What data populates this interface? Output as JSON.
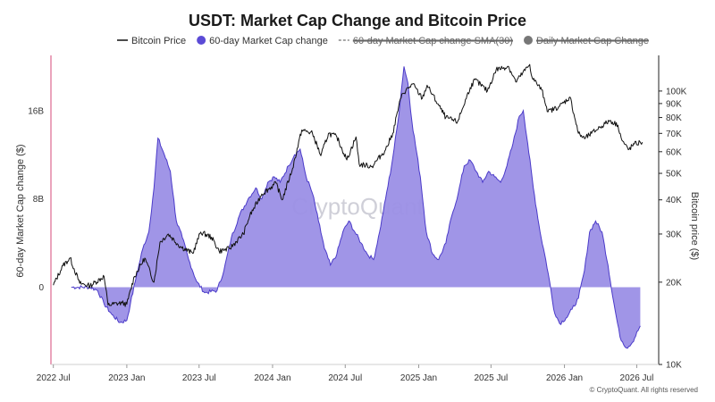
{
  "chart_data": {
    "type": "area",
    "title": "USDT: Market Cap Change and Bitcoin Price",
    "ylabel_left": "60-day Market Cap change ($)",
    "ylabel_right": "Bitcoin price ($)",
    "left_ticks": [
      {
        "label": "16B",
        "value": 16000000000
      },
      {
        "label": "8B",
        "value": 8000000000
      },
      {
        "label": "0",
        "value": 0
      }
    ],
    "right_ticks": [
      {
        "label": "100K",
        "value": 100000
      },
      {
        "label": "90K",
        "value": 90000
      },
      {
        "label": "80K",
        "value": 80000
      },
      {
        "label": "70K",
        "value": 70000
      },
      {
        "label": "60K",
        "value": 60000
      },
      {
        "label": "50K",
        "value": 50000
      },
      {
        "label": "40K",
        "value": 40000
      },
      {
        "label": "30K",
        "value": 30000
      },
      {
        "label": "20K",
        "value": 20000
      },
      {
        "label": "10K",
        "value": 10000
      }
    ],
    "ylim_left": [
      -7000000000,
      21000000000
    ],
    "ylim_right_log": [
      10000,
      135000
    ],
    "x_ticks": [
      {
        "label": "2022 Jul",
        "date": "2022-07-01"
      },
      {
        "label": "2023 Jan",
        "date": "2023-01-01"
      },
      {
        "label": "2023 Jul",
        "date": "2023-07-01"
      },
      {
        "label": "2024 Jan",
        "date": "2024-01-01"
      },
      {
        "label": "2024 Jul",
        "date": "2024-07-01"
      },
      {
        "label": "2025 Jan",
        "date": "2025-01-01"
      },
      {
        "label": "2025 Jul",
        "date": "2025-07-01"
      },
      {
        "label": "2026 Jan",
        "date": "2026-01-01"
      },
      {
        "label": "2026 Jul",
        "date": "2026-07-01"
      }
    ],
    "xlim": [
      "2022-06-25",
      "2026-08-25"
    ],
    "legend": [
      {
        "name": "Bitcoin Price",
        "style": "line",
        "color": "#111111",
        "enabled": true
      },
      {
        "name": "60-day Market Cap change",
        "style": "dot",
        "color": "#5b4bd6",
        "enabled": true
      },
      {
        "name": "60-day Market Cap change SMA(30)",
        "style": "dashed",
        "color": "#888888",
        "enabled": false
      },
      {
        "name": "Daily Market Cap Change",
        "style": "dot",
        "color": "#777777",
        "enabled": false
      }
    ],
    "legend_position": "top",
    "grid": false,
    "colors": {
      "area_fill": "#9b8fe6",
      "area_line": "#4b3bc9",
      "price_line": "#111111",
      "left_axis_line": "#d64a7a"
    },
    "series": [
      {
        "name": "60-day Market Cap change",
        "unit": "USD billions",
        "points": [
          [
            "2022-08-15",
            0.0
          ],
          [
            "2022-10-01",
            0.0
          ],
          [
            "2022-10-20",
            -0.3
          ],
          [
            "2022-11-05",
            -1.5
          ],
          [
            "2022-11-25",
            -2.5
          ],
          [
            "2022-12-15",
            -3.2
          ],
          [
            "2023-01-01",
            -3.0
          ],
          [
            "2023-01-10",
            -1.5
          ],
          [
            "2023-01-25",
            1.0
          ],
          [
            "2023-02-10",
            3.5
          ],
          [
            "2023-02-25",
            5.0
          ],
          [
            "2023-03-10",
            9.0
          ],
          [
            "2023-03-20",
            13.5
          ],
          [
            "2023-04-05",
            12.0
          ],
          [
            "2023-04-20",
            10.5
          ],
          [
            "2023-05-05",
            6.0
          ],
          [
            "2023-05-20",
            4.5
          ],
          [
            "2023-06-05",
            2.5
          ],
          [
            "2023-06-25",
            0.5
          ],
          [
            "2023-07-15",
            -0.5
          ],
          [
            "2023-08-15",
            -0.3
          ],
          [
            "2023-09-01",
            1.5
          ],
          [
            "2023-09-20",
            4.5
          ],
          [
            "2023-10-10",
            6.5
          ],
          [
            "2023-11-01",
            8.0
          ],
          [
            "2023-11-20",
            9.0
          ],
          [
            "2023-12-05",
            8.0
          ],
          [
            "2023-12-20",
            9.5
          ],
          [
            "2024-01-05",
            10.0
          ],
          [
            "2024-01-20",
            9.5
          ],
          [
            "2024-02-10",
            11.0
          ],
          [
            "2024-02-25",
            12.0
          ],
          [
            "2024-03-10",
            12.5
          ],
          [
            "2024-03-25",
            10.0
          ],
          [
            "2024-04-10",
            8.5
          ],
          [
            "2024-04-25",
            6.0
          ],
          [
            "2024-05-10",
            3.5
          ],
          [
            "2024-05-25",
            2.0
          ],
          [
            "2024-06-10",
            3.0
          ],
          [
            "2024-06-25",
            5.0
          ],
          [
            "2024-07-10",
            6.0
          ],
          [
            "2024-07-25",
            5.0
          ],
          [
            "2024-08-10",
            4.0
          ],
          [
            "2024-08-25",
            3.0
          ],
          [
            "2024-09-10",
            2.5
          ],
          [
            "2024-09-25",
            5.0
          ],
          [
            "2024-10-10",
            8.0
          ],
          [
            "2024-10-25",
            11.0
          ],
          [
            "2024-11-10",
            15.0
          ],
          [
            "2024-11-25",
            20.0
          ],
          [
            "2024-12-05",
            18.5
          ],
          [
            "2024-12-15",
            15.0
          ],
          [
            "2025-01-05",
            10.0
          ],
          [
            "2025-01-20",
            5.0
          ],
          [
            "2025-02-05",
            3.0
          ],
          [
            "2025-02-20",
            2.5
          ],
          [
            "2025-03-10",
            4.0
          ],
          [
            "2025-03-25",
            6.5
          ],
          [
            "2025-04-10",
            8.5
          ],
          [
            "2025-04-25",
            11.0
          ],
          [
            "2025-05-10",
            11.5
          ],
          [
            "2025-05-25",
            10.5
          ],
          [
            "2025-06-10",
            9.5
          ],
          [
            "2025-06-25",
            10.5
          ],
          [
            "2025-07-10",
            10.0
          ],
          [
            "2025-07-25",
            9.5
          ],
          [
            "2025-08-10",
            11.0
          ],
          [
            "2025-08-25",
            13.0
          ],
          [
            "2025-09-10",
            15.5
          ],
          [
            "2025-09-20",
            16.0
          ],
          [
            "2025-10-01",
            13.0
          ],
          [
            "2025-10-15",
            9.0
          ],
          [
            "2025-11-01",
            5.0
          ],
          [
            "2025-11-15",
            2.5
          ],
          [
            "2025-11-25",
            0.5
          ],
          [
            "2025-12-05",
            -2.0
          ],
          [
            "2025-12-20",
            -3.3
          ],
          [
            "2026-01-05",
            -2.8
          ],
          [
            "2026-01-20",
            -2.0
          ],
          [
            "2026-02-05",
            -1.0
          ],
          [
            "2026-02-20",
            1.5
          ],
          [
            "2026-03-05",
            5.0
          ],
          [
            "2026-03-20",
            6.0
          ],
          [
            "2026-04-05",
            5.0
          ],
          [
            "2026-04-20",
            2.0
          ],
          [
            "2026-05-05",
            -1.5
          ],
          [
            "2026-05-20",
            -4.5
          ],
          [
            "2026-06-05",
            -5.5
          ],
          [
            "2026-06-20",
            -5.0
          ],
          [
            "2026-07-10",
            -3.5
          ]
        ]
      },
      {
        "name": "Bitcoin Price",
        "unit": "USD",
        "points": [
          [
            "2022-07-01",
            19500
          ],
          [
            "2022-07-25",
            23000
          ],
          [
            "2022-08-12",
            24500
          ],
          [
            "2022-09-05",
            19800
          ],
          [
            "2022-10-01",
            19400
          ],
          [
            "2022-11-05",
            21000
          ],
          [
            "2022-11-15",
            16500
          ],
          [
            "2022-12-20",
            16800
          ],
          [
            "2023-01-01",
            16600
          ],
          [
            "2023-01-20",
            21000
          ],
          [
            "2023-02-15",
            24500
          ],
          [
            "2023-03-10",
            20000
          ],
          [
            "2023-03-25",
            28000
          ],
          [
            "2023-04-15",
            30000
          ],
          [
            "2023-05-15",
            27000
          ],
          [
            "2023-06-15",
            25500
          ],
          [
            "2023-07-05",
            30500
          ],
          [
            "2023-08-01",
            29200
          ],
          [
            "2023-08-20",
            26000
          ],
          [
            "2023-09-15",
            26500
          ],
          [
            "2023-10-20",
            30000
          ],
          [
            "2023-11-05",
            35000
          ],
          [
            "2023-12-05",
            42000
          ],
          [
            "2024-01-10",
            46000
          ],
          [
            "2024-01-25",
            40000
          ],
          [
            "2024-02-20",
            52000
          ],
          [
            "2024-03-14",
            72000
          ],
          [
            "2024-04-10",
            70000
          ],
          [
            "2024-05-01",
            58000
          ],
          [
            "2024-05-20",
            70000
          ],
          [
            "2024-06-10",
            68000
          ],
          [
            "2024-07-05",
            56000
          ],
          [
            "2024-07-28",
            68000
          ],
          [
            "2024-08-05",
            54000
          ],
          [
            "2024-09-06",
            53000
          ],
          [
            "2024-10-10",
            61000
          ],
          [
            "2024-10-28",
            70000
          ],
          [
            "2024-11-12",
            88000
          ],
          [
            "2024-11-22",
            98000
          ],
          [
            "2024-12-17",
            106000
          ],
          [
            "2025-01-10",
            94000
          ],
          [
            "2025-01-22",
            105000
          ],
          [
            "2025-02-25",
            86000
          ],
          [
            "2025-03-10",
            80000
          ],
          [
            "2025-04-08",
            77000
          ],
          [
            "2025-05-10",
            103000
          ],
          [
            "2025-05-22",
            110000
          ],
          [
            "2025-06-22",
            100000
          ],
          [
            "2025-07-14",
            120000
          ],
          [
            "2025-08-14",
            123000
          ],
          [
            "2025-09-01",
            108000
          ],
          [
            "2025-10-06",
            125000
          ],
          [
            "2025-10-12",
            112000
          ],
          [
            "2025-11-05",
            101000
          ],
          [
            "2025-11-21",
            84000
          ],
          [
            "2025-12-20",
            88000
          ],
          [
            "2026-01-15",
            95000
          ],
          [
            "2026-02-05",
            70000
          ],
          [
            "2026-02-20",
            67000
          ],
          [
            "2026-03-10",
            70000
          ],
          [
            "2026-04-01",
            74000
          ],
          [
            "2026-04-25",
            78000
          ],
          [
            "2026-05-15",
            75000
          ],
          [
            "2026-05-25",
            66000
          ],
          [
            "2026-06-10",
            61000
          ],
          [
            "2026-06-25",
            64000
          ],
          [
            "2026-07-15",
            65000
          ]
        ]
      }
    ]
  },
  "watermark": "CryptoQuant",
  "credit": "© CryptoQuant. All rights reserved"
}
